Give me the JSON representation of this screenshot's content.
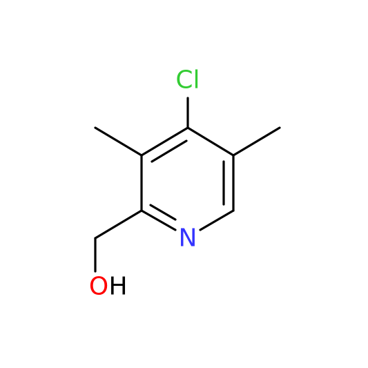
{
  "atoms": {
    "chlorine": "Cl",
    "nitrogen": "N",
    "oxygen": "O",
    "hydrogen": "H"
  }
}
